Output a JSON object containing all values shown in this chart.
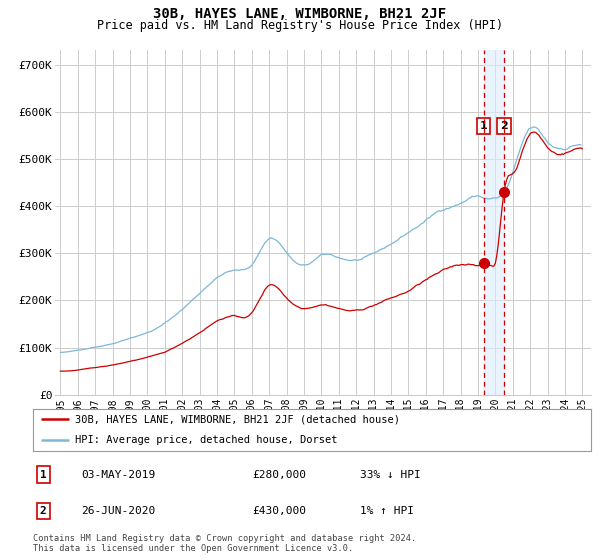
{
  "title": "30B, HAYES LANE, WIMBORNE, BH21 2JF",
  "subtitle": "Price paid vs. HM Land Registry's House Price Index (HPI)",
  "ylabel_ticks": [
    "£0",
    "£100K",
    "£200K",
    "£300K",
    "£400K",
    "£500K",
    "£600K",
    "£700K"
  ],
  "ytick_vals": [
    0,
    100000,
    200000,
    300000,
    400000,
    500000,
    600000,
    700000
  ],
  "ylim": [
    0,
    730000
  ],
  "xlim_start": 1994.7,
  "xlim_end": 2025.5,
  "legend_line1": "30B, HAYES LANE, WIMBORNE, BH21 2JF (detached house)",
  "legend_line2": "HPI: Average price, detached house, Dorset",
  "sale1_label": "1",
  "sale1_date": "03-MAY-2019",
  "sale1_price": "£280,000",
  "sale1_hpi": "33% ↓ HPI",
  "sale1_year": 2019.33,
  "sale1_value": 280000,
  "sale2_label": "2",
  "sale2_date": "26-JUN-2020",
  "sale2_price": "£430,000",
  "sale2_hpi": "1% ↑ HPI",
  "sale2_year": 2020.5,
  "sale2_value": 430000,
  "footer": "Contains HM Land Registry data © Crown copyright and database right 2024.\nThis data is licensed under the Open Government Licence v3.0.",
  "hpi_color": "#7db8d8",
  "price_color": "#cc0000",
  "dashed_color": "#cc0000",
  "shade_color": "#ddeeff",
  "bg_color": "#ffffff",
  "grid_color": "#cccccc"
}
